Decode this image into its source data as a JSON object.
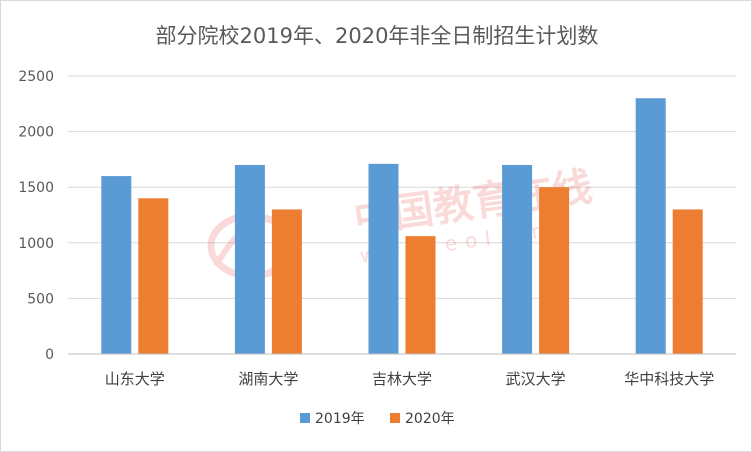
{
  "chart_data": {
    "type": "bar",
    "title": "部分院校2019年、2020年非全日制招生计划数",
    "categories": [
      "山东大学",
      "湖南大学",
      "吉林大学",
      "武汉大学",
      "华中科技大学"
    ],
    "series": [
      {
        "name": "2019年",
        "values": [
          1600,
          1700,
          1710,
          1700,
          2300
        ],
        "color": "#5b9bd5"
      },
      {
        "name": "2020年",
        "values": [
          1400,
          1300,
          1060,
          1500,
          1300
        ],
        "color": "#ed7d31"
      }
    ],
    "ylim": [
      0,
      2500
    ],
    "yticks": [
      0,
      500,
      1000,
      1500,
      2000,
      2500
    ],
    "grid": true,
    "legend": "bottom"
  },
  "watermark": {
    "text": "中国教育在线",
    "subtext": "www.eol.cn"
  }
}
